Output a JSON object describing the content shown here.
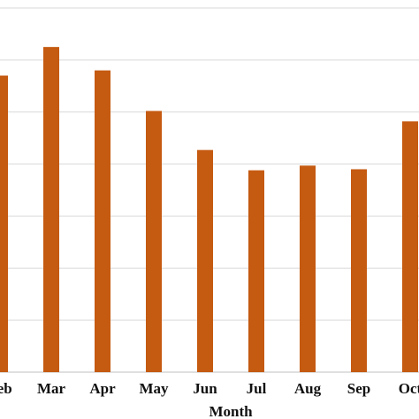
{
  "chart_data": {
    "type": "bar",
    "title": "",
    "xlabel": "Month",
    "ylabel": "",
    "categories": [
      "Feb",
      "Mar",
      "Apr",
      "May",
      "Jun",
      "Jul",
      "Aug",
      "Sep",
      "Oct"
    ],
    "values": [
      5.7,
      6.25,
      5.8,
      5.02,
      4.27,
      3.88,
      3.97,
      3.9,
      4.82
    ],
    "ylim": [
      0,
      7
    ],
    "grid": true,
    "legend": "none",
    "colors": {
      "bar": "#c55a11"
    }
  }
}
